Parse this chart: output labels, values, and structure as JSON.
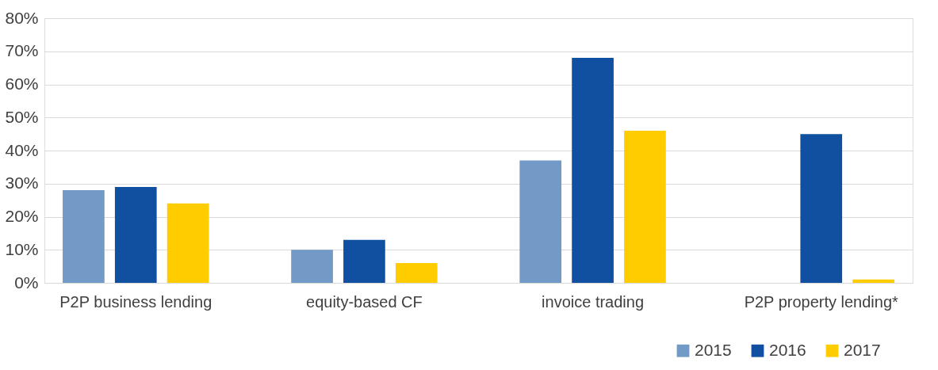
{
  "chart_data": {
    "type": "bar",
    "categories": [
      "P2P business lending",
      "equity-based CF",
      "invoice trading",
      "P2P property lending*"
    ],
    "series": [
      {
        "name": "2015",
        "color": "#7399c6",
        "values": [
          28,
          10,
          37,
          null
        ]
      },
      {
        "name": "2016",
        "color": "#1150a0",
        "values": [
          29,
          13,
          68,
          45
        ]
      },
      {
        "name": "2017",
        "color": "#ffcc00",
        "values": [
          24,
          6,
          46,
          1
        ]
      }
    ],
    "ylim": [
      0,
      80
    ],
    "yticks": [
      {
        "value": 0,
        "label": "0%"
      },
      {
        "value": 10,
        "label": "10%"
      },
      {
        "value": 20,
        "label": "20%"
      },
      {
        "value": 30,
        "label": "30%"
      },
      {
        "value": 40,
        "label": "40%"
      },
      {
        "value": 50,
        "label": "50%"
      },
      {
        "value": 60,
        "label": "60%"
      },
      {
        "value": 70,
        "label": "70%"
      },
      {
        "value": 80,
        "label": "80%"
      }
    ],
    "grid": "y",
    "legend": "bottom right"
  }
}
